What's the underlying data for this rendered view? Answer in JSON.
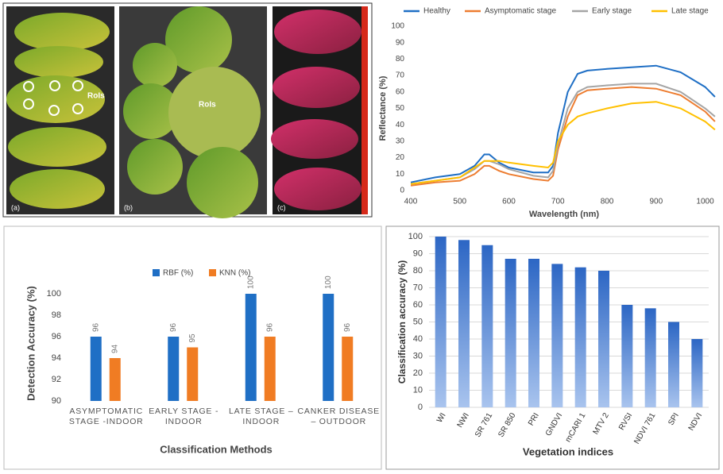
{
  "photos": {
    "panels": [
      {
        "label": "(a)",
        "annotation": "RoIs"
      },
      {
        "label": "(b)",
        "annotation": "RoIs"
      },
      {
        "label": "(c)"
      }
    ]
  },
  "chart_data": [
    {
      "type": "line",
      "xlabel": "Wavelength (nm)",
      "ylabel": "Reflectance (%)",
      "x": [
        400,
        450,
        500,
        530,
        550,
        560,
        580,
        600,
        650,
        680,
        690,
        700,
        720,
        740,
        760,
        800,
        850,
        900,
        950,
        1000,
        1020
      ],
      "series": [
        {
          "name": "Healthy",
          "color": "#1f6fc5",
          "values": [
            5,
            8,
            10,
            15,
            22,
            22,
            17,
            14,
            11,
            11,
            15,
            35,
            60,
            71,
            73,
            74,
            75,
            76,
            72,
            63,
            57
          ]
        },
        {
          "name": "Asymptomatic stage",
          "color": "#ed7d31",
          "values": [
            3,
            5,
            6,
            10,
            15,
            15,
            12,
            10,
            7,
            6,
            9,
            25,
            45,
            58,
            61,
            62,
            63,
            62,
            58,
            48,
            42
          ]
        },
        {
          "name": "Early  stage",
          "color": "#a5a5a5",
          "values": [
            4,
            6,
            8,
            13,
            18,
            18,
            16,
            13,
            9,
            8,
            12,
            28,
            50,
            60,
            63,
            64,
            65,
            65,
            60,
            50,
            45
          ]
        },
        {
          "name": "Late stage",
          "color": "#ffc000",
          "values": [
            4,
            6,
            8,
            14,
            18,
            18,
            18,
            17,
            15,
            14,
            17,
            30,
            40,
            45,
            47,
            50,
            53,
            54,
            50,
            42,
            37
          ]
        }
      ],
      "xlim": [
        400,
        1025
      ],
      "xticks": [
        400,
        500,
        600,
        700,
        800,
        900,
        1000
      ],
      "ylim": [
        0,
        100
      ],
      "yticks": [
        0,
        10,
        20,
        30,
        40,
        50,
        60,
        70,
        80,
        90,
        100
      ],
      "grid": false,
      "legend": "top"
    },
    {
      "type": "bar",
      "xlabel": "Classification Methods",
      "ylabel": "Detection Accuracy (%)",
      "categories": [
        "ASYMPTOMATIC STAGE -INDOOR",
        "EARLY STAGE - INDOOR",
        "LATE STAGE – INDOOR",
        "CANKER DISEASE – OUTDOOR"
      ],
      "series": [
        {
          "name": "RBF (%)",
          "color": "#1f6fc5",
          "values": [
            96,
            96,
            100,
            100
          ]
        },
        {
          "name": "KNN (%)",
          "color": "#f07c23",
          "values": [
            94,
            95,
            96,
            96
          ]
        }
      ],
      "ylim": [
        90,
        100
      ],
      "yticks": [
        90,
        92,
        94,
        96,
        98,
        100
      ],
      "grid": false,
      "legend": "top"
    },
    {
      "type": "bar",
      "xlabel": "Vegetation indices",
      "ylabel": "Classification accuracy (%)",
      "categories": [
        "WI",
        "NWI",
        "SR 761",
        "SR 850",
        "PRI",
        "GNDVI",
        "mCARI 1",
        "MTV 2",
        "RVSI",
        "NDVI 761",
        "SPI",
        "NDVI"
      ],
      "values": [
        100,
        98,
        95,
        87,
        87,
        84,
        82,
        80,
        60,
        58,
        50,
        40
      ],
      "color": "#2c66c4",
      "ylim": [
        0,
        100
      ],
      "yticks": [
        0,
        10,
        20,
        30,
        40,
        50,
        60,
        70,
        80,
        90,
        100
      ],
      "grid": true
    }
  ]
}
